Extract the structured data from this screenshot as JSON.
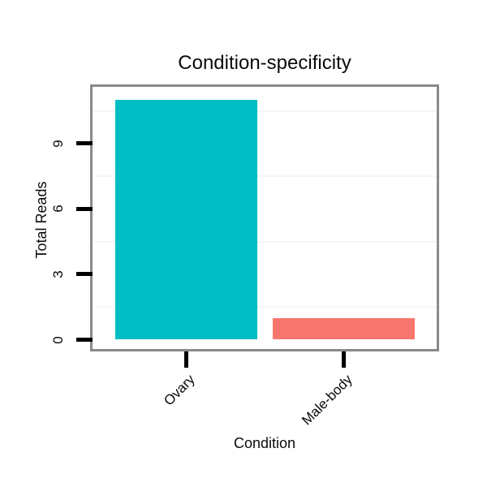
{
  "chart_data": {
    "type": "bar",
    "title": "Condition-specificity",
    "xlabel": "Condition",
    "ylabel": "Total Reads",
    "categories": [
      "Ovary",
      "Male-body"
    ],
    "values": [
      11,
      1
    ],
    "bar_colors": [
      "#00BFC4",
      "#F8766D"
    ],
    "yticks": [
      0,
      3,
      6,
      9
    ],
    "ylim": [
      -0.6,
      11.6
    ],
    "minor_gridlines": [
      1.5,
      4.5,
      7.5,
      10.5
    ],
    "grid": "horizontal-minor-only",
    "legend": "none",
    "panel_border_color": "#8a8a8a",
    "gridline_color": "#f5f5f5",
    "tick_color": "#000000",
    "x_tick_label_angle_deg": 45,
    "y_tick_label_angle_deg": 90
  }
}
